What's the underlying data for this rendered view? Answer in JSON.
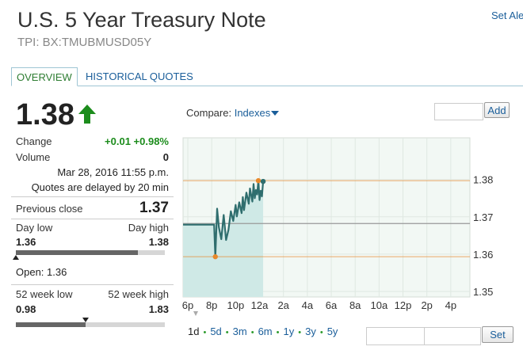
{
  "header": {
    "title": "U.S. 5 Year Treasury Note",
    "symbol": "TPI: BX:TMUBMUSD05Y",
    "set_alert": "Set Ale"
  },
  "tabs": [
    {
      "label": "OVERVIEW",
      "active": true
    },
    {
      "label": "HISTORICAL QUOTES",
      "active": false
    }
  ],
  "quote": {
    "price": "1.38",
    "direction_icon": "up-arrow-icon",
    "change_label": "Change",
    "change_value": "+0.01 +0.98%",
    "volume_label": "Volume",
    "volume_value": "0",
    "timestamp": "Mar 28, 2016 11:55 p.m.",
    "delay_note": "Quotes are delayed by 20 min",
    "prev_close_label": "Previous close",
    "prev_close_value": "1.37",
    "day_low_label": "Day low",
    "day_high_label": "Day high",
    "day_low_value": "1.36",
    "day_high_value": "1.38",
    "day_range_fraction": 0.0,
    "open_label": "Open:",
    "open_value": "1.36",
    "week52_low_label": "52 week low",
    "week52_high_label": "52 week high",
    "week52_low_value": "0.98",
    "week52_high_value": "1.83",
    "week52_fraction": 0.47
  },
  "compare": {
    "label": "Compare:",
    "dropdown_label": "Indexes",
    "add_button": "Add",
    "add_input_value": ""
  },
  "range_selector": {
    "ranges": [
      "1d",
      "5d",
      "3m",
      "6m",
      "1y",
      "3y",
      "5y"
    ],
    "selected": "1d",
    "set_button": "Set",
    "from_value": "",
    "to_value": ""
  },
  "colors": {
    "accent_green": "#1c8c1c",
    "link_blue": "#1a5e9a",
    "line": "#2f6e6e",
    "marker_orange": "#e8892b",
    "area_fill": "#cfe9e6"
  },
  "chart_data": {
    "type": "line",
    "x_ticks": [
      "6p",
      "8p",
      "10p",
      "12a",
      "2a",
      "4a",
      "6a",
      "8a",
      "10a",
      "12p",
      "2p",
      "4p"
    ],
    "y_ticks": [
      "1.38",
      "1.37",
      "1.36",
      "1.35"
    ],
    "ylim": [
      1.3485,
      1.3912
    ],
    "xlim": [
      0,
      24
    ],
    "grid": true,
    "previous_close": 1.3682,
    "day_high_marker": {
      "x": 6.3,
      "y": 1.3797
    },
    "day_low_marker": {
      "x": 2.7,
      "y": 1.3593
    },
    "series": [
      {
        "x": [
          0,
          2.6,
          2.7,
          2.85,
          3.0,
          3.2,
          3.4,
          3.6,
          3.8,
          4.0,
          4.2,
          4.4,
          4.5,
          4.7,
          4.9,
          5.0,
          5.1,
          5.3,
          5.5,
          5.6,
          5.8,
          5.9,
          6.0,
          6.1,
          6.2,
          6.3,
          6.4,
          6.5,
          6.6,
          6.7
        ],
        "y": [
          1.3679,
          1.3679,
          1.3593,
          1.3722,
          1.3672,
          1.364,
          1.3705,
          1.3638,
          1.3665,
          1.3715,
          1.3689,
          1.3732,
          1.3701,
          1.3739,
          1.371,
          1.3753,
          1.3718,
          1.3765,
          1.3735,
          1.3776,
          1.3741,
          1.3788,
          1.375,
          1.3772,
          1.376,
          1.3797,
          1.3745,
          1.377,
          1.3755,
          1.3795
        ]
      }
    ]
  }
}
